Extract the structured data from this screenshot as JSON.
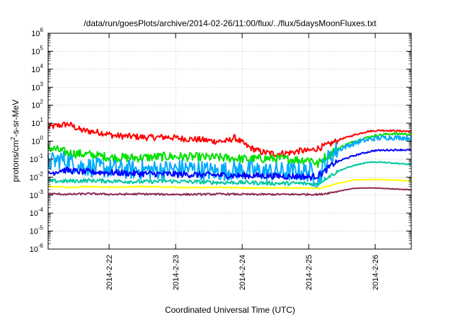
{
  "chart_data": {
    "type": "line",
    "title": "/data/run/goesPlots/archive/2014-02-26/11:00/flux/../flux/5daysMoonFluxes.txt",
    "xlabel": "Coordinated Universal Time (UTC)",
    "ylabel": "protons/cm²-s-sr-MeV",
    "ylabel_parts": {
      "before": "protons/cm",
      "sup": "2",
      "after": "-s-sr-MeV"
    },
    "scale_y": "log",
    "grid": true,
    "ylim": [
      1e-06,
      1000000.0
    ],
    "y_ticks": [
      {
        "value": 1e-06,
        "base": "10",
        "exp": "-6"
      },
      {
        "value": 1e-05,
        "base": "10",
        "exp": "-5"
      },
      {
        "value": 0.0001,
        "base": "10",
        "exp": "-4"
      },
      {
        "value": 0.001,
        "base": "10",
        "exp": "-3"
      },
      {
        "value": 0.01,
        "base": "10",
        "exp": "-2"
      },
      {
        "value": 0.1,
        "base": "10",
        "exp": "-1"
      },
      {
        "value": 1,
        "base": "10",
        "exp": "0"
      },
      {
        "value": 10,
        "base": "10",
        "exp": "1"
      },
      {
        "value": 100,
        "base": "10",
        "exp": "2"
      },
      {
        "value": 1000,
        "base": "10",
        "exp": "3"
      },
      {
        "value": 10000,
        "base": "10",
        "exp": "4"
      },
      {
        "value": 100000,
        "base": "10",
        "exp": "5"
      },
      {
        "value": 1000000,
        "base": "10",
        "exp": "6"
      }
    ],
    "xlim": [
      "2014-02-21 02:00",
      "2014-02-26 13:00"
    ],
    "x_ticks": [
      "2014-2-22",
      "2014-2-23",
      "2014-2-24",
      "2014-2-25",
      "2014-2-26"
    ],
    "series": [
      {
        "color": "#ff0000",
        "x": [
          0.0,
          0.3,
          0.5,
          0.8,
          1.0,
          1.3,
          1.5,
          1.8,
          2.0,
          2.3,
          2.5,
          2.7,
          2.8,
          3.0,
          3.2,
          3.4,
          3.6,
          3.7,
          3.8,
          3.9,
          4.0,
          4.2,
          4.4,
          4.6,
          4.8,
          5.0,
          5.2,
          5.45
        ],
        "y": [
          6,
          9,
          4,
          3,
          2.0,
          1.8,
          1.6,
          1.7,
          1.4,
          1.2,
          1.0,
          1.0,
          1.6,
          0.5,
          0.25,
          0.2,
          0.22,
          0.25,
          0.3,
          0.28,
          0.35,
          0.6,
          1.3,
          2.2,
          3.5,
          4.0,
          3.8,
          3.5
        ],
        "noise": 0.35
      },
      {
        "color": "#00e000",
        "x": [
          0.0,
          0.3,
          0.6,
          1.0,
          1.4,
          1.8,
          2.2,
          2.6,
          3.0,
          3.3,
          3.6,
          3.8,
          3.95,
          4.05,
          4.15,
          4.3,
          4.5,
          4.7,
          4.9,
          5.1,
          5.3,
          5.45
        ],
        "y": [
          0.45,
          0.22,
          0.18,
          0.12,
          0.12,
          0.14,
          0.13,
          0.12,
          0.1,
          0.11,
          0.1,
          0.09,
          0.1,
          0.05,
          0.12,
          0.3,
          0.7,
          1.3,
          2.0,
          2.5,
          2.6,
          2.4
        ],
        "noise": 0.5
      },
      {
        "color": "#00aaff",
        "x": [
          0.0,
          0.2,
          0.5,
          0.9,
          1.3,
          1.7,
          2.1,
          2.5,
          2.9,
          3.3,
          3.6,
          3.8,
          3.95,
          4.05,
          4.15,
          4.3,
          4.5,
          4.7,
          4.9,
          5.1,
          5.3,
          5.45
        ],
        "y": [
          0.06,
          0.1,
          0.04,
          0.03,
          0.025,
          0.025,
          0.03,
          0.02,
          0.025,
          0.02,
          0.02,
          0.02,
          0.02,
          0.006,
          0.05,
          0.25,
          0.55,
          1.0,
          1.4,
          1.6,
          1.6,
          1.5
        ],
        "noise": 1.1
      },
      {
        "color": "#0000ff",
        "x": [
          0.0,
          0.2,
          0.5,
          0.9,
          1.3,
          1.7,
          2.1,
          2.5,
          2.9,
          3.3,
          3.6,
          3.8,
          3.95,
          4.05,
          4.15,
          4.3,
          4.5,
          4.7,
          4.9,
          5.1,
          5.3,
          5.45
        ],
        "y": [
          0.015,
          0.025,
          0.02,
          0.018,
          0.016,
          0.015,
          0.014,
          0.013,
          0.012,
          0.012,
          0.011,
          0.011,
          0.01,
          0.012,
          0.02,
          0.06,
          0.12,
          0.2,
          0.3,
          0.32,
          0.33,
          0.32
        ],
        "noise": 0.35
      },
      {
        "color": "#00c8a0",
        "x": [
          0.0,
          0.3,
          0.6,
          1.0,
          1.4,
          1.8,
          2.2,
          2.6,
          3.0,
          3.4,
          3.8,
          4.05,
          4.2,
          4.4,
          4.6,
          4.8,
          5.0,
          5.2,
          5.45
        ],
        "y": [
          0.006,
          0.006,
          0.0065,
          0.006,
          0.0055,
          0.006,
          0.0055,
          0.005,
          0.005,
          0.0045,
          0.0045,
          0.004,
          0.01,
          0.025,
          0.045,
          0.065,
          0.07,
          0.06,
          0.05
        ],
        "noise": 0.22
      },
      {
        "color": "#ffff00",
        "x": [
          0.0,
          0.3,
          0.6,
          1.0,
          1.4,
          1.8,
          2.2,
          2.6,
          3.0,
          3.4,
          3.8,
          4.1,
          4.3,
          4.6,
          4.9,
          5.2,
          5.45
        ],
        "y": [
          0.003,
          0.0027,
          0.003,
          0.0027,
          0.003,
          0.0028,
          0.0026,
          0.0027,
          0.0025,
          0.0025,
          0.0025,
          0.0024,
          0.004,
          0.007,
          0.0075,
          0.007,
          0.006
        ],
        "noise": 0.06
      },
      {
        "color": "#8c2a55",
        "x": [
          0.0,
          0.3,
          0.6,
          1.0,
          1.4,
          1.8,
          2.2,
          2.6,
          3.0,
          3.4,
          3.8,
          4.1,
          4.3,
          4.6,
          4.9,
          5.2,
          5.45
        ],
        "y": [
          0.0012,
          0.0011,
          0.0012,
          0.0011,
          0.00115,
          0.0011,
          0.0011,
          0.00115,
          0.0011,
          0.0011,
          0.0011,
          0.0011,
          0.0015,
          0.0024,
          0.0025,
          0.0022,
          0.002
        ],
        "noise": 0.1
      }
    ]
  }
}
